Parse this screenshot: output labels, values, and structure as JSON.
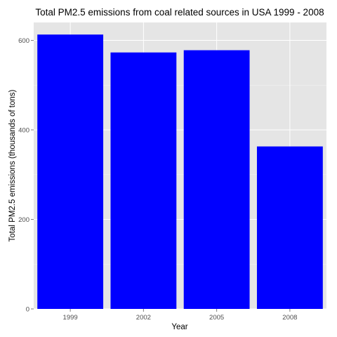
{
  "chart_data": {
    "type": "bar",
    "title": "Total PM2.5 emissions from coal related sources in USA 1999 - 2008",
    "xlabel": "Year",
    "ylabel": "Total PM2.5 emissions (thousands of tons)",
    "categories": [
      "1999",
      "2002",
      "2005",
      "2008"
    ],
    "values": [
      613,
      573,
      578,
      363
    ],
    "ylim": [
      0,
      640
    ],
    "yticks": [
      0,
      200,
      400,
      600
    ],
    "grid": true,
    "legend": "none",
    "colors": {
      "bar": "#0000FF",
      "panel": "#E5E5E5",
      "grid": "#FFFFFF"
    }
  }
}
